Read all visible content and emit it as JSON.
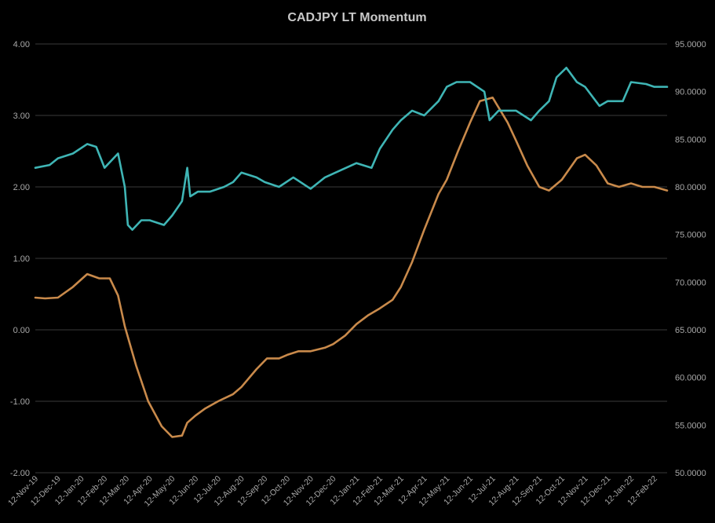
{
  "chart_data": {
    "type": "line",
    "title": "CADJPY LT Momentum",
    "x_ticks": [
      "12-Nov-19",
      "12-Dec-19",
      "12-Jan-20",
      "12-Feb-20",
      "12-Mar-20",
      "12-Apr-20",
      "12-May-20",
      "12-Jun-20",
      "12-Jul-20",
      "12-Aug-20",
      "12-Sep-20",
      "12-Oct-20",
      "12-Nov-20",
      "12-Dec-20",
      "12-Jan-21",
      "12-Feb-21",
      "12-Mar-21",
      "12-Apr-21",
      "12-May-21",
      "12-Jun-21",
      "12-Jul-21",
      "12-Aug-21",
      "12-Sep-21",
      "12-Oct-21",
      "12-Nov-21",
      "12-Dec-21",
      "12-Jan-22",
      "12-Feb-22"
    ],
    "y_left": {
      "ticks": [
        "4.00",
        "3.00",
        "2.00",
        "1.00",
        "0.00",
        "-1.00",
        "-2.00"
      ],
      "ylim": [
        -2,
        4
      ]
    },
    "y_right": {
      "ticks": [
        "95.0000",
        "90.0000",
        "85.0000",
        "80.0000",
        "75.0000",
        "70.0000",
        "65.0000",
        "60.0000",
        "55.0000",
        "50.0000"
      ],
      "ylim": [
        50,
        95
      ]
    },
    "grid": true,
    "series": [
      {
        "axis": "left",
        "color": "#c98a4b",
        "x": [
          "12-Nov-19",
          "25-Nov-19",
          "12-Dec-19",
          "01-Jan-20",
          "20-Jan-20",
          "05-Feb-20",
          "19-Feb-20",
          "01-Mar-20",
          "10-Mar-20",
          "25-Mar-20",
          "10-Apr-20",
          "28-Apr-20",
          "12-May-20",
          "25-May-20",
          "01-Jun-20",
          "12-Jun-20",
          "25-Jun-20",
          "12-Jul-20",
          "01-Aug-20",
          "12-Aug-20",
          "01-Sep-20",
          "15-Sep-20",
          "01-Oct-20",
          "12-Oct-20",
          "27-Oct-20",
          "12-Nov-20",
          "01-Dec-20",
          "12-Dec-20",
          "28-Dec-20",
          "12-Jan-21",
          "27-Jan-21",
          "12-Feb-21",
          "01-Mar-21",
          "12-Mar-21",
          "27-Mar-21",
          "12-Apr-21",
          "01-May-21",
          "12-May-21",
          "27-May-21",
          "12-Jun-21",
          "25-Jun-21",
          "12-Jul-21",
          "01-Aug-21",
          "12-Aug-21",
          "27-Aug-21",
          "12-Sep-21",
          "25-Sep-21",
          "12-Oct-21",
          "01-Nov-21",
          "12-Nov-21",
          "27-Nov-21",
          "12-Dec-21",
          "27-Dec-21",
          "12-Jan-22",
          "27-Jan-22",
          "12-Feb-22",
          "01-Mar-22"
        ],
        "values": [
          0.45,
          0.44,
          0.45,
          0.6,
          0.78,
          0.72,
          0.72,
          0.48,
          0.05,
          -0.5,
          -1.0,
          -1.35,
          -1.5,
          -1.48,
          -1.3,
          -1.2,
          -1.1,
          -1.0,
          -0.9,
          -0.8,
          -0.55,
          -0.4,
          -0.4,
          -0.35,
          -0.3,
          -0.3,
          -0.25,
          -0.2,
          -0.08,
          0.08,
          0.2,
          0.3,
          0.42,
          0.6,
          0.95,
          1.4,
          1.9,
          2.1,
          2.5,
          2.9,
          3.2,
          3.25,
          2.9,
          2.65,
          2.3,
          2.0,
          1.95,
          2.1,
          2.4,
          2.45,
          2.3,
          2.05,
          2.0,
          2.05,
          2.0,
          2.0,
          1.95
        ]
      },
      {
        "axis": "right",
        "color": "#3fb5b5",
        "x": [
          "12-Nov-19",
          "01-Dec-19",
          "12-Dec-19",
          "01-Jan-20",
          "20-Jan-20",
          "01-Feb-20",
          "12-Feb-20",
          "01-Mar-20",
          "10-Mar-20",
          "14-Mar-20",
          "20-Mar-20",
          "01-Apr-20",
          "12-Apr-20",
          "01-May-20",
          "12-May-20",
          "25-May-20",
          "01-Jun-20",
          "05-Jun-20",
          "15-Jun-20",
          "01-Jul-20",
          "20-Jul-20",
          "01-Aug-20",
          "12-Aug-20",
          "01-Sep-20",
          "12-Sep-20",
          "01-Oct-20",
          "20-Oct-20",
          "12-Nov-20",
          "01-Dec-20",
          "15-Dec-20",
          "12-Jan-21",
          "01-Feb-21",
          "12-Feb-21",
          "01-Mar-21",
          "12-Mar-21",
          "27-Mar-21",
          "12-Apr-21",
          "01-May-21",
          "12-May-21",
          "25-May-21",
          "12-Jun-21",
          "01-Jul-21",
          "08-Jul-21",
          "20-Jul-21",
          "12-Aug-21",
          "01-Sep-21",
          "12-Sep-21",
          "25-Sep-21",
          "05-Oct-21",
          "18-Oct-21",
          "01-Nov-21",
          "12-Nov-21",
          "01-Dec-21",
          "12-Dec-21",
          "01-Jan-22",
          "12-Jan-22",
          "01-Feb-22",
          "12-Feb-22",
          "01-Mar-22"
        ],
        "values": [
          82.0,
          82.3,
          83.0,
          83.5,
          84.5,
          84.2,
          82.0,
          83.5,
          80.0,
          76.0,
          75.5,
          76.5,
          76.5,
          76.0,
          77.0,
          78.5,
          82.0,
          79.0,
          79.5,
          79.5,
          80.0,
          80.5,
          81.5,
          81.0,
          80.5,
          80.0,
          81.0,
          79.8,
          81.0,
          81.5,
          82.5,
          82.0,
          84.0,
          86.0,
          87.0,
          88.0,
          87.5,
          89.0,
          90.5,
          91.0,
          91.0,
          90.0,
          87.0,
          88.0,
          88.0,
          87.0,
          88.0,
          89.0,
          91.5,
          92.5,
          91.0,
          90.5,
          88.5,
          89.0,
          89.0,
          91.0,
          90.8,
          90.5,
          90.5
        ]
      }
    ]
  }
}
